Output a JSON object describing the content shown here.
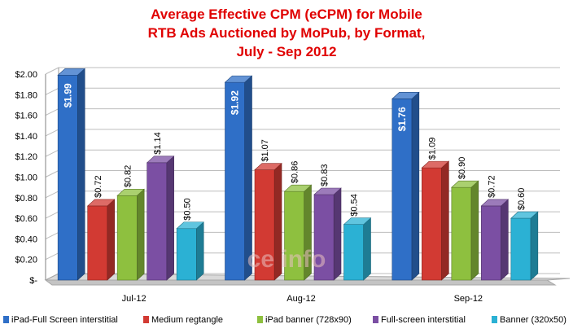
{
  "chart_data": {
    "type": "bar",
    "title": [
      "Average Effective CPM (eCPM) for Mobile",
      "RTB Ads Auctioned by MoPub, by Format,",
      "July - Sep 2012"
    ],
    "categories": [
      "Jul-12",
      "Aug-12",
      "Sep-12"
    ],
    "series": [
      {
        "name": "iPad-Full Screen interstitial",
        "color": "#2f6fc7",
        "values": [
          1.99,
          1.92,
          1.76
        ],
        "labels": [
          "$1.99",
          "$1.92",
          "$1.76"
        ]
      },
      {
        "name": "Medium regtangle",
        "color": "#d23a33",
        "values": [
          0.72,
          1.07,
          1.09
        ],
        "labels": [
          "$0.72",
          "$1.07",
          "$1.09"
        ]
      },
      {
        "name": "iPad banner (728x90)",
        "color": "#8ec03f",
        "values": [
          0.82,
          0.86,
          0.9
        ],
        "labels": [
          "$0.82",
          "$0.86",
          "$0.90"
        ]
      },
      {
        "name": "Full-screen interstitial",
        "color": "#7b4fa3",
        "values": [
          1.14,
          0.83,
          0.72
        ],
        "labels": [
          "$1.14",
          "$0.83",
          "$0.72"
        ]
      },
      {
        "name": "Banner (320x50)",
        "color": "#2bb1d4",
        "values": [
          0.5,
          0.54,
          0.6
        ],
        "labels": [
          "$0.50",
          "$0.54",
          "$0.60"
        ]
      }
    ],
    "y_ticks": [
      "$-",
      "$0.20",
      "$0.40",
      "$0.60",
      "$0.80",
      "$1.00",
      "$1.20",
      "$1.40",
      "$1.60",
      "$1.80",
      "$2.00"
    ],
    "ylim": [
      0,
      2.0
    ],
    "legend_position": "bottom",
    "watermark": "ce info"
  }
}
